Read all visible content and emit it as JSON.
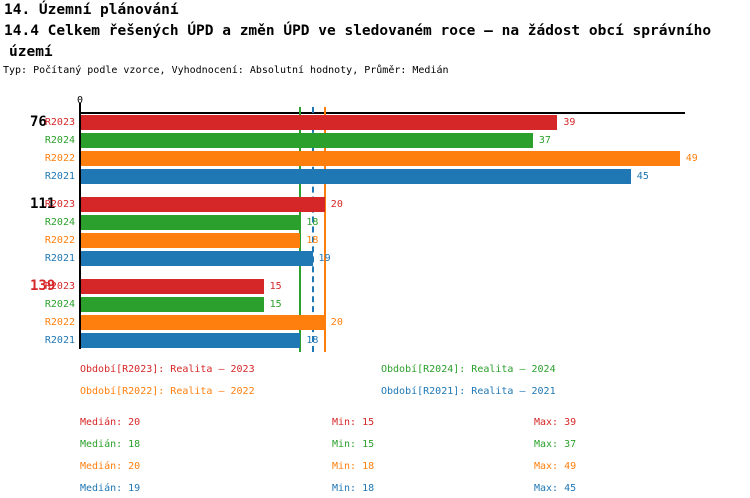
{
  "header": {
    "line1": "14. Územní plánování",
    "line2": "14.4 Celkem řešených ÚPD a změn ÚPD ve sledovaném roce – na žádost obcí správního",
    "line3": "území",
    "meta": "Typ: Počítaný podle vzorce, Vyhodnocení: Absolutní hodnoty, Průměr: Medián"
  },
  "colors": {
    "R2023": "#d62728",
    "R2024": "#2ca02c",
    "R2022": "#ff7f0e",
    "R2021": "#1f77b4",
    "axis": "#000000",
    "text": "#000000",
    "highlight_group_label": "#d62728"
  },
  "chart_data": {
    "type": "bar",
    "orientation": "horizontal",
    "title": "14.4 Celkem řešených ÚPD a změn ÚPD ve sledovaném roce – na žádost obcí správního území",
    "x_axis": {
      "tick_labels": [
        "0"
      ],
      "min": 0,
      "max": 49.5,
      "grid": false
    },
    "series_order": [
      "R2023",
      "R2024",
      "R2022",
      "R2021"
    ],
    "groups": [
      {
        "label": "76",
        "highlighted": false,
        "values": {
          "R2023": 39,
          "R2024": 37,
          "R2022": 49,
          "R2021": 45
        }
      },
      {
        "label": "111",
        "highlighted": false,
        "values": {
          "R2023": 20,
          "R2024": 18,
          "R2022": 18,
          "R2021": 19
        }
      },
      {
        "label": "139",
        "highlighted": true,
        "values": {
          "R2023": 15,
          "R2024": 15,
          "R2022": 20,
          "R2021": 18
        }
      }
    ],
    "median_lines": [
      {
        "series": "R2023",
        "value": 20,
        "style": "solid"
      },
      {
        "series": "R2024",
        "value": 18,
        "style": "solid"
      },
      {
        "series": "R2021",
        "value": 19,
        "style": "dashed"
      },
      {
        "series": "R2022",
        "value": 20,
        "style": "solid"
      }
    ]
  },
  "legend": [
    {
      "series": "R2023",
      "label": "Období[R2023]: Realita – 2023",
      "row": 0,
      "col": 0
    },
    {
      "series": "R2024",
      "label": "Období[R2024]: Realita – 2024",
      "row": 0,
      "col": 1
    },
    {
      "series": "R2022",
      "label": "Období[R2022]: Realita – 2022",
      "row": 1,
      "col": 0
    },
    {
      "series": "R2021",
      "label": "Období[R2021]: Realita – 2021",
      "row": 1,
      "col": 1
    }
  ],
  "stats_labels": {
    "median": "Medián",
    "min": "Min",
    "max": "Max"
  },
  "stats": [
    {
      "series": "R2023",
      "median": 20,
      "min": 15,
      "max": 39
    },
    {
      "series": "R2024",
      "median": 18,
      "min": 15,
      "max": 37
    },
    {
      "series": "R2022",
      "median": 20,
      "min": 18,
      "max": 49
    },
    {
      "series": "R2021",
      "median": 19,
      "min": 18,
      "max": 45
    }
  ]
}
